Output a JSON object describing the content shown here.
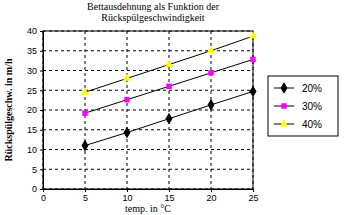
{
  "chart_data": {
    "type": "line",
    "title": "Bettausdehnung als Funktion der\nRückspülgeschwindigkeit",
    "x_label": "temp. in °C",
    "y_label": "Rückspülgeschw. in m/h",
    "x": [
      5,
      10,
      15,
      20,
      25
    ],
    "series": [
      {
        "name": "20%",
        "color": "#000000",
        "marker": "diamond",
        "values": [
          11,
          14.3,
          17.8,
          21.3,
          24.7
        ]
      },
      {
        "name": "30%",
        "color": "#ff00ff",
        "marker": "square",
        "values": [
          19.2,
          22.6,
          26,
          29.4,
          32.8
        ]
      },
      {
        "name": "40%",
        "color": "#ffff00",
        "marker": "triangle",
        "values": [
          24.5,
          28,
          31.5,
          35,
          38.7
        ]
      }
    ],
    "xlim": [
      0,
      25
    ],
    "xticks": [
      0,
      5,
      10,
      15,
      20,
      25
    ],
    "ylim": [
      0,
      40
    ],
    "yticks": [
      0,
      5,
      10,
      15,
      20,
      25,
      30,
      35,
      40
    ],
    "grid": true,
    "legend": "right"
  }
}
